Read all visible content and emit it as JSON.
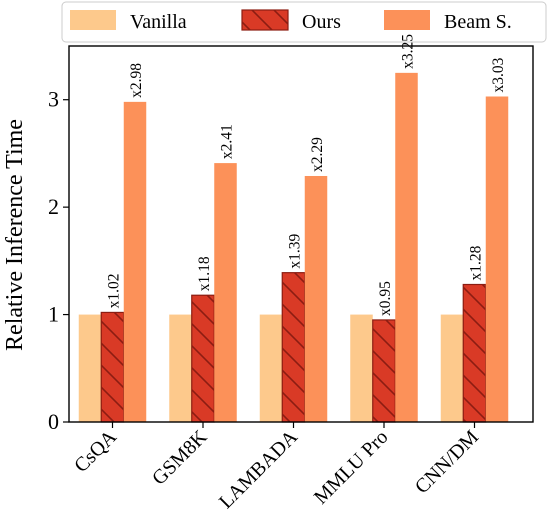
{
  "chart_data": {
    "type": "bar",
    "title": "",
    "xlabel": "",
    "ylabel": "Relative Inference Time",
    "ylim": [
      0,
      3.5
    ],
    "yticks": [
      0,
      1,
      2,
      3
    ],
    "categories": [
      "CsQA",
      "GSM8K",
      "LAMBADA",
      "MMLU Pro",
      "CNN/DM"
    ],
    "legend_position": "top",
    "grid": false,
    "series": [
      {
        "name": "Vanilla",
        "values": [
          1.0,
          1.0,
          1.0,
          1.0,
          1.0
        ],
        "color": "#fdc98c",
        "labels": [
          "",
          "",
          "",
          "",
          ""
        ]
      },
      {
        "name": "Ours",
        "values": [
          1.02,
          1.18,
          1.39,
          0.95,
          1.28
        ],
        "color": "#d93a26",
        "hatch": true,
        "labels": [
          "x1.02",
          "x1.18",
          "x1.39",
          "x0.95",
          "x1.28"
        ]
      },
      {
        "name": "Beam S.",
        "values": [
          2.98,
          2.41,
          2.29,
          3.25,
          3.03
        ],
        "color": "#fc9159",
        "labels": [
          "x2.98",
          "x2.41",
          "x2.29",
          "x3.25",
          "x3.03"
        ]
      }
    ]
  }
}
